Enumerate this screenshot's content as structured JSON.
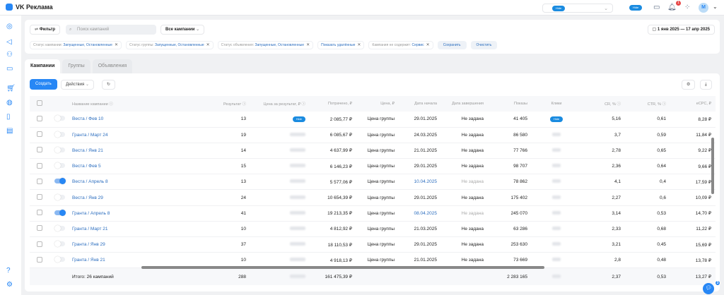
{
  "app": {
    "title": "VK Реклама"
  },
  "header": {
    "mask_label": "Hide",
    "notifications_count": "1",
    "chat_count": "3",
    "avatar_letter": "M",
    "accent": "#2787f5"
  },
  "filter": {
    "filter_label": "Фильтр",
    "search_placeholder": "Поиск кампаний",
    "campaigns_select": "Все кампании",
    "date_range": "1 янв 2025 — 17 апр 2025",
    "chips": [
      {
        "label": "Статус кампании:",
        "value": "Запущенные, Остановленные"
      },
      {
        "label": "Статус группы:",
        "value": "Запущенные, Остановленные"
      },
      {
        "label": "Статус объявления:",
        "value": "Запущенные, Остановленные"
      },
      {
        "label": "",
        "value": "Показать удалённые"
      },
      {
        "label": "Кампания не содержит:",
        "value": "Сервис"
      }
    ],
    "save": "Сохранить",
    "clear": "Очистить"
  },
  "tabs": [
    "Кампании",
    "Группы",
    "Объявления"
  ],
  "toolbar": {
    "create": "Создать",
    "actions": "Действия"
  },
  "table": {
    "columns": [
      "Название кампании",
      "Результат",
      "Цена за результат, ₽",
      "Потрачено, ₽",
      "Цена, ₽",
      "Дата начала",
      "Дата завершения",
      "Показы",
      "Клики",
      "CR, %",
      "CTR, %",
      "eCPC, ₽"
    ],
    "rows": [
      {
        "name": "Веста / Фев 10",
        "on": false,
        "result": "13",
        "spent": "2 085,77 ₽",
        "price": "Цена группы",
        "start": "29.01.2025",
        "end": "Не задана",
        "shows": "41 405",
        "cr": "5,16",
        "ctr": "0,61",
        "ecpc": "8,28 ₽"
      },
      {
        "name": "Гранта / Март 24",
        "on": false,
        "result": "19",
        "spent": "6 085,67 ₽",
        "price": "Цена группы",
        "start": "24.03.2025",
        "end": "Не задана",
        "shows": "86 580",
        "cr": "3,7",
        "ctr": "0,59",
        "ecpc": "11,84 ₽"
      },
      {
        "name": "Веста / Янв 21",
        "on": false,
        "result": "14",
        "spent": "4 637,99 ₽",
        "price": "Цена группы",
        "start": "21.01.2025",
        "end": "Не задана",
        "shows": "77 766",
        "cr": "2,78",
        "ctr": "0,65",
        "ecpc": "9,22 ₽"
      },
      {
        "name": "Веста / Фев 5",
        "on": false,
        "result": "15",
        "spent": "6 146,23 ₽",
        "price": "Цена группы",
        "start": "29.01.2025",
        "end": "Не задана",
        "shows": "98 707",
        "cr": "2,36",
        "ctr": "0,64",
        "ecpc": "9,66 ₽"
      },
      {
        "name": "Веста / Апрель 8",
        "on": true,
        "result": "13",
        "spent": "5 577,06 ₽",
        "price": "Цена группы",
        "start": "10.04.2025",
        "end": "Не задана",
        "shows": "78 862",
        "cr": "4,1",
        "ctr": "0,4",
        "ecpc": "17,59 ₽"
      },
      {
        "name": "Веста / Янв 29",
        "on": false,
        "result": "24",
        "spent": "10 654,39 ₽",
        "price": "Цена группы",
        "start": "29.01.2025",
        "end": "Не задана",
        "shows": "175 402",
        "cr": "2,27",
        "ctr": "0,6",
        "ecpc": "10,09 ₽"
      },
      {
        "name": "Гранта / Апрель 8",
        "on": true,
        "result": "41",
        "spent": "19 213,35 ₽",
        "price": "Цена группы",
        "start": "08.04.2025",
        "end": "Не задана",
        "shows": "245 070",
        "cr": "3,14",
        "ctr": "0,53",
        "ecpc": "14,70 ₽"
      },
      {
        "name": "Гранта / Март 21",
        "on": false,
        "result": "10",
        "spent": "4 812,92 ₽",
        "price": "Цена группы",
        "start": "21.03.2025",
        "end": "Не задана",
        "shows": "63 286",
        "cr": "2,33",
        "ctr": "0,68",
        "ecpc": "11,22 ₽"
      },
      {
        "name": "Гранта / Янв 29",
        "on": false,
        "result": "37",
        "spent": "18 110,53 ₽",
        "price": "Цена группы",
        "start": "29.01.2025",
        "end": "Не задана",
        "shows": "253 630",
        "cr": "3,21",
        "ctr": "0,45",
        "ecpc": "15,69 ₽"
      },
      {
        "name": "Гранта / Янв 21",
        "on": false,
        "result": "10",
        "spent": "4 918,13 ₽",
        "price": "Цена группы",
        "start": "21.01.2025",
        "end": "Не задана",
        "shows": "73 669",
        "cr": "2,8",
        "ctr": "0,48",
        "ecpc": "13,78 ₽"
      }
    ],
    "total": {
      "label": "Итого: 26 кампаний",
      "result": "288",
      "spent": "161 475,39 ₽",
      "shows": "2 283 165",
      "cr": "2,37",
      "ctr": "0,53",
      "ecpc": "13,27 ₽"
    }
  }
}
